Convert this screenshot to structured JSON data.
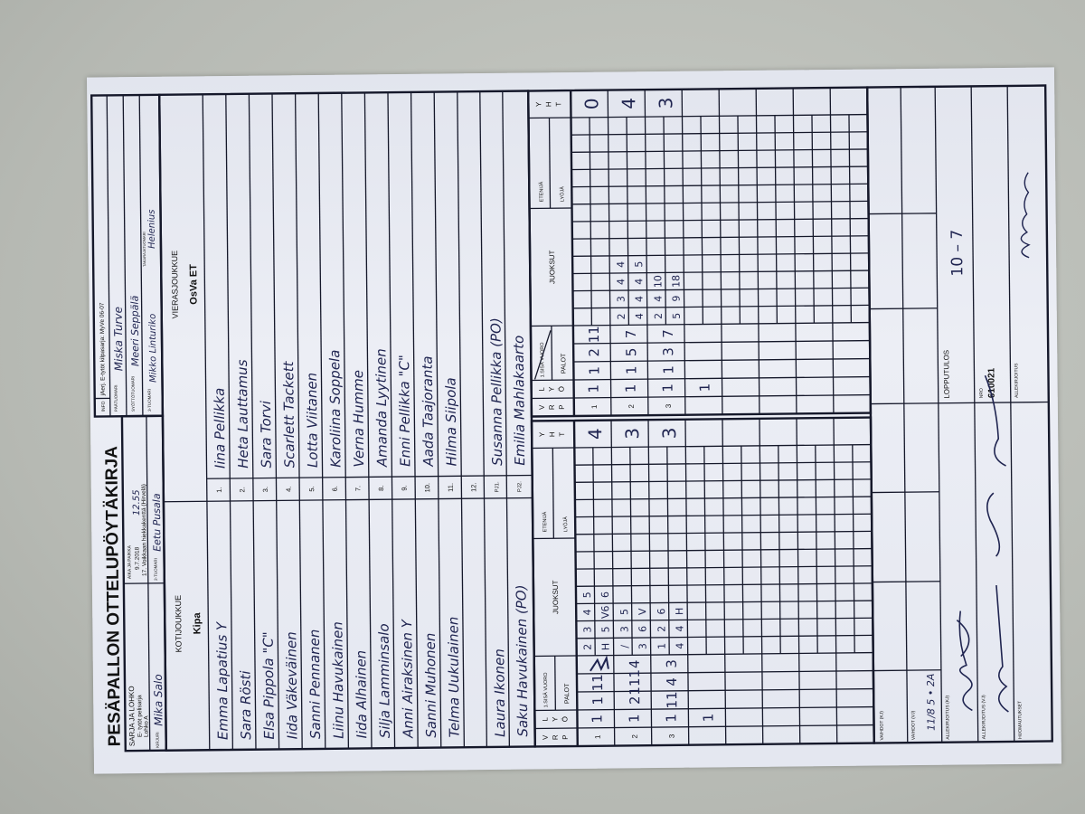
{
  "title": "PESÄPALLON OTTELUPÖYTÄKIRJA",
  "header": {
    "sarja_label": "SARJA JA LOHKO",
    "sarja_line1": "E- tytöt pelisarja",
    "sarja_line2": "Lohko A",
    "aika_label": "AIKA JA PAIKKA",
    "aika_date": "9.7.2018",
    "aika_time": "12.55",
    "aika_place": "17. Voikkaan hiekkakenttä (Hirvelä)",
    "kirjuri_label": "KIRJURI",
    "kirjuri": "Mika Salo",
    "tuomari2_label": "2-TUOMARI",
    "tuomari2": "Eetu Pusala",
    "info_label": "INFO",
    "info": "jAerj. E-tytöt kilpasarja: MyVe 06-07",
    "paatuomari_label": "PÄÄTUOMARI",
    "paatuomari": "Miska Turve",
    "syottotuomari_label": "SYÖTTÖTUOMARI",
    "syottotuomari": "Meeri Seppälä",
    "tuomari3_label": "3-TUOMARI",
    "tuomari3": "Mikko Linturiko",
    "takaraja_label": "TAKARAJATUOMARI",
    "takaraja": "Helenius"
  },
  "home": {
    "label": "KOTIJOUKKUE",
    "team": "Kipa",
    "players": [
      "Emma Lapatius  Y",
      "Sara Rösti",
      "Elsa Pippola \"C\"",
      "Iida Väkeväinen",
      "Sanni Pennanen",
      "Liinu Havukainen",
      "Iida Alhainen",
      "Silja Lamminsalo",
      "Anni Airaksinen  Y",
      "Sanni Muhonen",
      "Telma Uukulainen",
      ""
    ],
    "pj1": "Laura Ikonen",
    "pj2": "Saku Havukainen  (PO)"
  },
  "away": {
    "label": "VIERASJOUKKUE",
    "team": "OsVa ET",
    "players": [
      "Iina  Pellikka",
      "Heta  Lauttamus",
      "Sara  Torvi",
      "Scarlett  Tackett",
      "Lotta  Viitanen",
      "Karoliina  Soppela",
      "Verna  Humme",
      "Amanda  Lyytinen",
      "Enni  Pellikka  \"C\"",
      "Aada  Taajoranta",
      "Hilma  Siipola",
      ""
    ],
    "pj1": "Susanna  Pellikka  (PO)",
    "pj2": "Emilia  Mahlakaarto"
  },
  "numbers": [
    "1.",
    "2.",
    "3.",
    "4.",
    "5.",
    "6.",
    "7.",
    "8.",
    "9.",
    "10.",
    "11.",
    "12.",
    "PJ1.",
    "PJ2."
  ],
  "score_headers": {
    "vrp": [
      "V",
      "R",
      "P"
    ],
    "lyo": [
      "L",
      "Y",
      "Ö"
    ],
    "sisa_vuoro": "1.SISÄ VUORO",
    "palot": "PALOT",
    "juoksut": "JUOKSUT",
    "etenija": "ETENIJÄ",
    "lyoja": "LYÖJÄ",
    "yht": [
      "Y",
      "H",
      "T"
    ]
  },
  "home_innings": [
    {
      "vrp": "1",
      "lyo": "1",
      "palot": [
        "1",
        "11",
        ""
      ],
      "juoksut_top": [
        "2",
        "3",
        "4",
        "5"
      ],
      "juoksut_bottom": [
        "H",
        "5",
        "V6",
        "6"
      ],
      "yht": "4"
    },
    {
      "vrp": "2",
      "lyo": "1",
      "palot": [
        "2",
        "111",
        "4"
      ],
      "juoksut_top": [
        "/",
        "3",
        "5"
      ],
      "juoksut_bottom": [
        "3",
        "6",
        "V"
      ],
      "yht": "3"
    },
    {
      "vrp": "3",
      "lyo": "1",
      "palot": [
        "11",
        "4",
        "3"
      ],
      "juoksut_top": [
        "1",
        "2",
        "6"
      ],
      "juoksut_bottom": [
        "4",
        "4",
        "H"
      ],
      "yht": "3"
    },
    {
      "vrp": "",
      "lyo": "1",
      "palot": [
        "",
        "",
        ""
      ],
      "juoksut_top": [],
      "juoksut_bottom": [],
      "yht": ""
    }
  ],
  "away_innings": [
    {
      "vrp": "1",
      "lyo": "1",
      "palot": [
        "1",
        "2",
        "11"
      ],
      "juoksut_top": [],
      "juoksut_bottom": [],
      "yht": "0"
    },
    {
      "vrp": "2",
      "lyo": "1",
      "palot": [
        "1",
        "5",
        "7"
      ],
      "juoksut_top": [
        "2",
        "3",
        "4",
        "4"
      ],
      "juoksut_bottom": [
        "4",
        "4",
        "4",
        "5"
      ],
      "yht": "4"
    },
    {
      "vrp": "3",
      "lyo": "1",
      "palot": [
        "1",
        "3",
        "7"
      ],
      "juoksut_top": [
        "2",
        "4",
        "10"
      ],
      "juoksut_bottom": [
        "5",
        "9",
        "18"
      ],
      "yht": "3"
    },
    {
      "vrp": "",
      "lyo": "1",
      "palot": [
        "",
        "",
        ""
      ],
      "juoksut_top": [],
      "juoksut_bottom": [],
      "yht": ""
    }
  ],
  "footer": {
    "vaihdot_kj_label": "VAIHDOT (KJ)",
    "vaihdot_vj_label": "VAIHDOT (VJ)",
    "vaihdot_vj_value": "11/8 5 • 2A",
    "allekirjoitus_kj_label": "ALLEKIRJOITUS (KJ)",
    "allekirjoitus_vj_label": "ALLEKIRJOITUS (VJ)",
    "huomautukset_label": "HUOMAUTUKSET",
    "lopputulos_label": "LOPPUTULOS",
    "lopputulos": "10 – 7",
    "nro_label": "NRO",
    "nro": "610021",
    "allekirjoitus_label": "ALLEKIRJOITUS"
  },
  "colors": {
    "paper": "#e8ebf3",
    "ink": "#1f2450",
    "print": "#111111",
    "background": "#b9bcb6"
  }
}
